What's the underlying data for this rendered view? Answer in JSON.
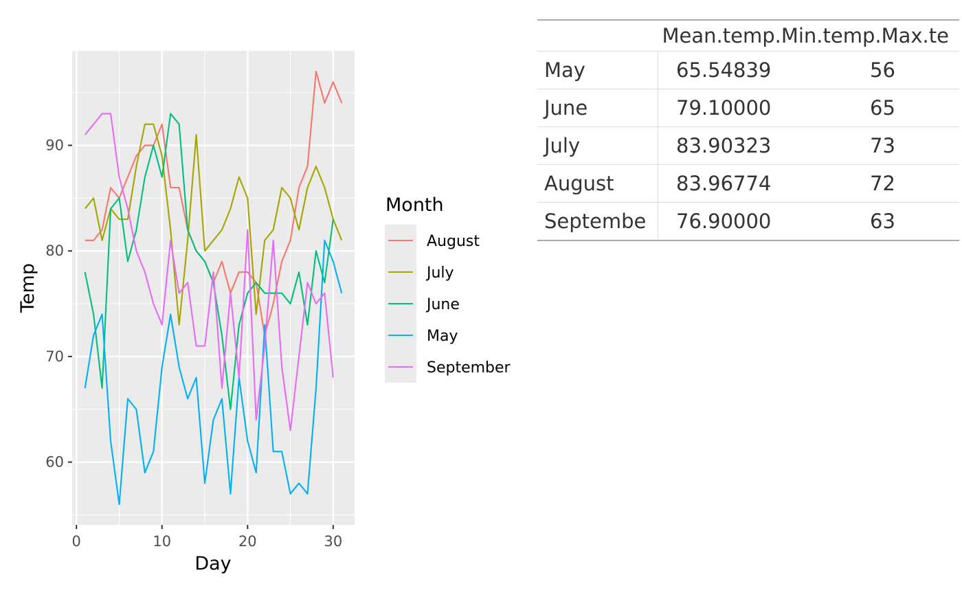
{
  "chart_data": [
    {
      "type": "line",
      "xlabel": "Day",
      "ylabel": "Temp",
      "xlim": [
        -0.5,
        32.5
      ],
      "ylim": [
        54.05,
        98.95
      ],
      "xticks": [
        0,
        10,
        20,
        30
      ],
      "yticks": [
        60,
        70,
        80,
        90
      ],
      "grid": true,
      "legend_title": "Month",
      "legend_position": "right",
      "series": [
        {
          "name": "August",
          "color": "#F8766D",
          "x": [
            1,
            2,
            3,
            4,
            5,
            6,
            7,
            8,
            9,
            10,
            11,
            12,
            13,
            14,
            15,
            16,
            17,
            18,
            19,
            20,
            21,
            22,
            23,
            24,
            25,
            26,
            27,
            28,
            29,
            30,
            31
          ],
          "values": [
            81,
            81,
            82,
            86,
            85,
            87,
            89,
            90,
            90,
            92,
            86,
            86,
            82,
            80,
            79,
            77,
            79,
            76,
            78,
            78,
            77,
            72,
            75,
            79,
            81,
            86,
            88,
            97,
            94,
            96,
            94
          ]
        },
        {
          "name": "July",
          "color": "#A3A500",
          "x": [
            1,
            2,
            3,
            4,
            5,
            6,
            7,
            8,
            9,
            10,
            11,
            12,
            13,
            14,
            15,
            16,
            17,
            18,
            19,
            20,
            21,
            22,
            23,
            24,
            25,
            26,
            27,
            28,
            29,
            30,
            31
          ],
          "values": [
            84,
            85,
            81,
            84,
            83,
            83,
            88,
            92,
            92,
            89,
            82,
            73,
            81,
            91,
            80,
            81,
            82,
            84,
            87,
            85,
            74,
            81,
            82,
            86,
            85,
            82,
            86,
            88,
            86,
            83,
            81
          ]
        },
        {
          "name": "June",
          "color": "#00BF7D",
          "x": [
            1,
            2,
            3,
            4,
            5,
            6,
            7,
            8,
            9,
            10,
            11,
            12,
            13,
            14,
            15,
            16,
            17,
            18,
            19,
            20,
            21,
            22,
            23,
            24,
            25,
            26,
            27,
            28,
            29,
            30
          ],
          "values": [
            78,
            74,
            67,
            84,
            85,
            79,
            82,
            87,
            90,
            87,
            93,
            92,
            82,
            80,
            79,
            77,
            72,
            65,
            73,
            76,
            77,
            76,
            76,
            76,
            75,
            78,
            73,
            80,
            77,
            83
          ]
        },
        {
          "name": "May",
          "color": "#00B0F6",
          "x": [
            1,
            2,
            3,
            4,
            5,
            6,
            7,
            8,
            9,
            10,
            11,
            12,
            13,
            14,
            15,
            16,
            17,
            18,
            19,
            20,
            21,
            22,
            23,
            24,
            25,
            26,
            27,
            28,
            29,
            30,
            31
          ],
          "values": [
            67,
            72,
            74,
            62,
            56,
            66,
            65,
            59,
            61,
            69,
            74,
            69,
            66,
            68,
            58,
            64,
            66,
            57,
            68,
            62,
            59,
            73,
            61,
            61,
            57,
            58,
            57,
            67,
            81,
            79,
            76
          ]
        },
        {
          "name": "September",
          "color": "#E76BF3",
          "x": [
            1,
            2,
            3,
            4,
            5,
            6,
            7,
            8,
            9,
            10,
            11,
            12,
            13,
            14,
            15,
            16,
            17,
            18,
            19,
            20,
            21,
            22,
            23,
            24,
            25,
            26,
            27,
            28,
            29,
            30
          ],
          "values": [
            91,
            92,
            93,
            93,
            87,
            84,
            80,
            78,
            75,
            73,
            81,
            76,
            77,
            71,
            71,
            78,
            67,
            76,
            68,
            82,
            64,
            71,
            81,
            69,
            63,
            70,
            77,
            75,
            76,
            68
          ]
        }
      ]
    },
    {
      "type": "table",
      "columns": [
        "Mean.temp",
        "Min.temp",
        "Max.temp"
      ],
      "header_text": "Mean.temp.Min.temp.Max.te",
      "rows": [
        {
          "name": "May",
          "values": [
            "65.54839",
            "56"
          ]
        },
        {
          "name": "June",
          "values": [
            "79.10000",
            "65"
          ]
        },
        {
          "name": "July",
          "values": [
            "83.90323",
            "73"
          ]
        },
        {
          "name": "August",
          "values": [
            "83.96774",
            "72"
          ]
        },
        {
          "name": "Septembe",
          "values": [
            "76.90000",
            "63"
          ]
        }
      ]
    }
  ]
}
